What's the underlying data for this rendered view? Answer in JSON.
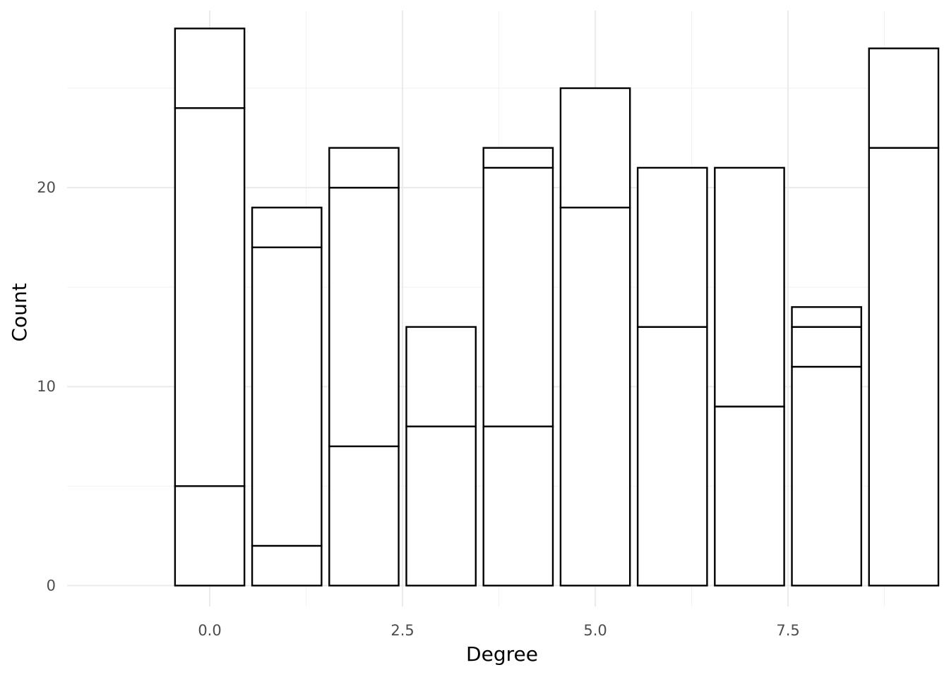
{
  "chart_data": {
    "type": "bar",
    "stacked": true,
    "xlabel": "Degree",
    "ylabel": "Count",
    "xlim": [
      -1.85,
      9.45
    ],
    "ylim": [
      -1.05,
      28.9
    ],
    "x_ticks": [
      0.0,
      2.5,
      5.0,
      7.5
    ],
    "x_tick_labels": [
      "0.0",
      "2.5",
      "5.0",
      "7.5"
    ],
    "x_minor_ticks": [
      1.25,
      3.75,
      6.25,
      8.75
    ],
    "y_ticks": [
      0,
      10,
      20
    ],
    "y_tick_labels": [
      "0",
      "10",
      "20"
    ],
    "y_minor_ticks": [
      5,
      15,
      25
    ],
    "grid": true,
    "bar_width": 0.9,
    "fill_color": "#ffffff",
    "outline_color": "#000000",
    "bars": [
      {
        "x": 0,
        "boundaries": [
          0,
          5,
          24,
          28
        ]
      },
      {
        "x": 1,
        "boundaries": [
          0,
          2,
          17,
          19
        ]
      },
      {
        "x": 2,
        "boundaries": [
          0,
          7,
          20,
          22
        ]
      },
      {
        "x": 3,
        "boundaries": [
          0,
          8,
          13
        ]
      },
      {
        "x": 4,
        "boundaries": [
          0,
          8,
          21,
          22
        ]
      },
      {
        "x": 5,
        "boundaries": [
          0,
          19,
          25
        ]
      },
      {
        "x": 6,
        "boundaries": [
          0,
          13,
          21
        ]
      },
      {
        "x": 7,
        "boundaries": [
          0,
          9,
          21
        ]
      },
      {
        "x": 8,
        "boundaries": [
          0,
          11,
          13,
          14
        ]
      },
      {
        "x": 9,
        "boundaries": [
          0,
          22,
          27
        ]
      }
    ]
  }
}
